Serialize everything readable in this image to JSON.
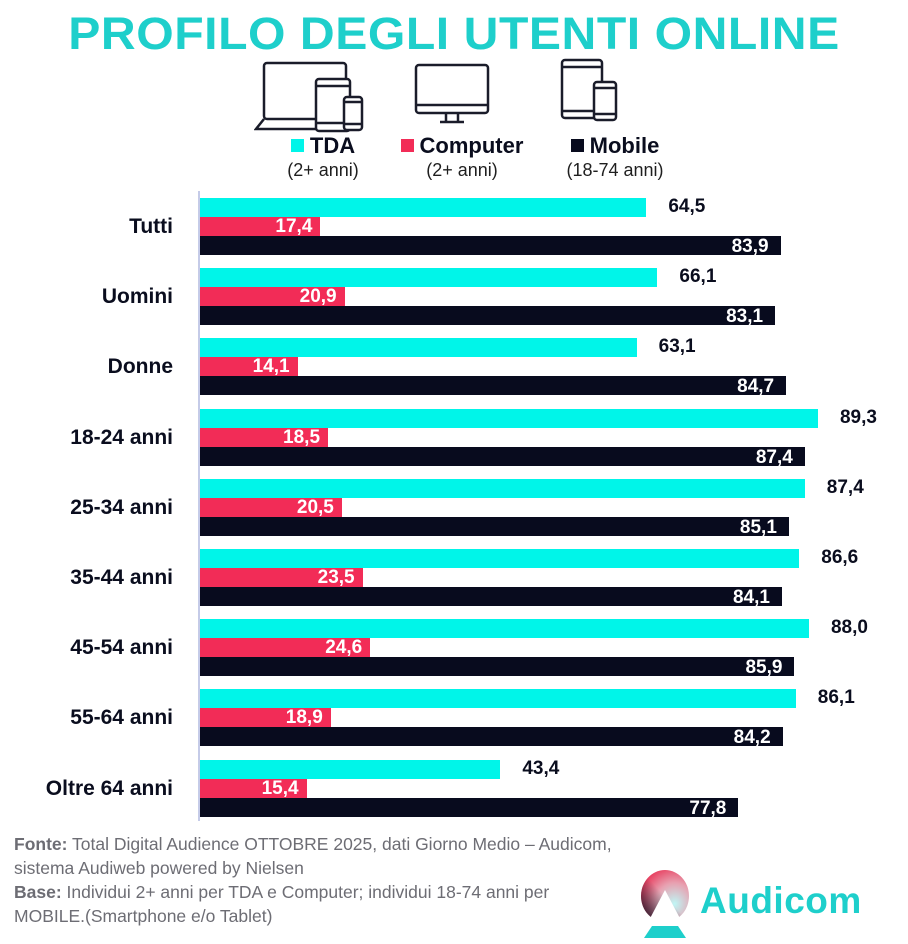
{
  "title": "PROFILO DEGLI UTENTI ONLINE",
  "icons": [
    "multi-device-icon",
    "desktop-computer-icon",
    "tablet-smartphone-icon"
  ],
  "legend": [
    {
      "label": "TDA",
      "sub": "(2+ anni)",
      "color": "#00F5E9"
    },
    {
      "label": "Computer",
      "sub": "(2+ anni)",
      "color": "#F22C57"
    },
    {
      "label": "Mobile",
      "sub": "(18-74 anni)",
      "color": "#080B1E"
    }
  ],
  "rows": [
    {
      "label": "Tutti",
      "tda": "64,5",
      "computer": "17,4",
      "mobile": "83,9"
    },
    {
      "label": "Uomini",
      "tda": "66,1",
      "computer": "20,9",
      "mobile": "83,1"
    },
    {
      "label": "Donne",
      "tda": "63,1",
      "computer": "14,1",
      "mobile": "84,7"
    },
    {
      "label": "18-24 anni",
      "tda": "89,3",
      "computer": "18,5",
      "mobile": "87,4"
    },
    {
      "label": "25-34 anni",
      "tda": "87,4",
      "computer": "20,5",
      "mobile": "85,1"
    },
    {
      "label": "35-44 anni",
      "tda": "86,6",
      "computer": "23,5",
      "mobile": "84,1"
    },
    {
      "label": "45-54 anni",
      "tda": "88,0",
      "computer": "24,6",
      "mobile": "85,9"
    },
    {
      "label": "55-64 anni",
      "tda": "86,1",
      "computer": "18,9",
      "mobile": "84,2"
    },
    {
      "label": "Oltre 64 anni",
      "tda": "43,4",
      "computer": "15,4",
      "mobile": "77,8"
    }
  ],
  "footer": {
    "fonte_label": "Fonte:",
    "fonte_text": " Total Digital Audience OTTOBRE 2025, dati Giorno Medio – Audicom, sistema Audiweb powered by Nielsen",
    "base_label": "Base:",
    "base_text": "  Individui 2+ anni per TDA e Computer; individui 18-74 anni per MOBILE.(Smartphone e/o Tablet)"
  },
  "logo": {
    "text": "Audicom"
  },
  "chart_data": {
    "type": "bar",
    "orientation": "horizontal",
    "title": "PROFILO DEGLI UTENTI ONLINE",
    "xlabel": "",
    "ylabel": "",
    "categories": [
      "Tutti",
      "Uomini",
      "Donne",
      "18-24 anni",
      "25-34 anni",
      "35-44 anni",
      "45-54 anni",
      "55-64 anni",
      "Oltre 64 anni"
    ],
    "series": [
      {
        "name": "TDA (2+ anni)",
        "color": "#00F5E9",
        "values": [
          64.5,
          66.1,
          63.1,
          89.3,
          87.4,
          86.6,
          88.0,
          86.1,
          43.4
        ]
      },
      {
        "name": "Computer (2+ anni)",
        "color": "#F22C57",
        "values": [
          17.4,
          20.9,
          14.1,
          18.5,
          20.5,
          23.5,
          24.6,
          18.9,
          15.4
        ]
      },
      {
        "name": "Mobile (18-74 anni)",
        "color": "#080B1E",
        "values": [
          83.9,
          83.1,
          84.7,
          87.4,
          85.1,
          84.1,
          85.9,
          84.2,
          77.8
        ]
      }
    ],
    "xlim": [
      0,
      100
    ],
    "grid": false,
    "legend_position": "top",
    "data_labels": true
  }
}
